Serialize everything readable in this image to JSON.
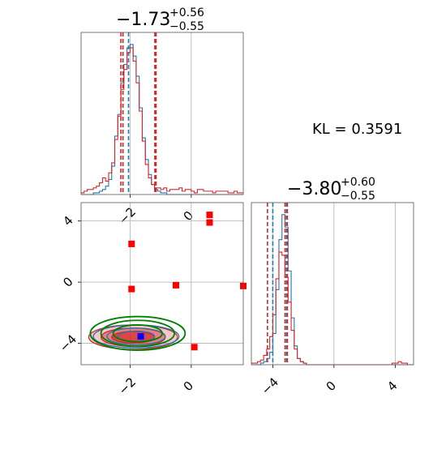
{
  "chart_data": [
    {
      "id": "marg1",
      "type": "histogram",
      "title": {
        "main": "−1.73",
        "sup": "+0.56",
        "sub": "−0.55"
      },
      "xlim": [
        -3.6,
        1.7
      ],
      "x_ticks": [
        -2,
        0
      ],
      "grid": true,
      "series": [
        {
          "color": "#1f77b4",
          "quantile_lines": [
            -2.05,
            -1.18
          ],
          "bins": {
            "start": -3.6,
            "width": 0.1,
            "counts": [
              0,
              0,
              0,
              0,
              1,
              1,
              2,
              3,
              5,
              9,
              17,
              35,
              48,
              67,
              78,
              88,
              90,
              83,
              71,
              52,
              34,
              21,
              12,
              6,
              3,
              2,
              1,
              1,
              0,
              0,
              0,
              0,
              0,
              0,
              0,
              0,
              0,
              0,
              0,
              0,
              0,
              0,
              0,
              0,
              0,
              0,
              0,
              0,
              0,
              0,
              0,
              0,
              0
            ]
          }
        },
        {
          "color": "#d62728",
          "quantile_lines": [
            -2.3,
            -2.23,
            -1.19,
            -1.15
          ],
          "bins": {
            "start": -3.6,
            "width": 0.1,
            "counts": [
              1,
              2,
              3,
              3,
              4,
              5,
              7,
              10,
              8,
              13,
              19,
              33,
              47,
              63,
              75,
              85,
              88,
              80,
              67,
              50,
              32,
              18,
              10,
              6,
              4,
              4,
              3,
              4,
              2,
              3,
              3,
              3,
              4,
              2,
              3,
              3,
              2,
              1,
              3,
              3,
              2,
              2,
              2,
              1,
              2,
              2,
              2,
              2,
              1,
              1,
              2,
              1,
              1
            ]
          }
        }
      ]
    },
    {
      "id": "joint",
      "type": "scatter_contour",
      "xlim": [
        -3.6,
        1.7
      ],
      "ylim": [
        -5.4,
        5.2
      ],
      "x_ticks": [
        -2,
        0
      ],
      "y_ticks": [
        -4,
        0,
        4
      ],
      "grid": true,
      "points": [
        {
          "x": -1.95,
          "y": 2.5,
          "color": "#ff0000"
        },
        {
          "x": -1.95,
          "y": -0.45,
          "color": "#ff0000"
        },
        {
          "x": -0.5,
          "y": -0.2,
          "color": "#ff0000"
        },
        {
          "x": 1.7,
          "y": -0.25,
          "color": "#ff0000"
        },
        {
          "x": 0.6,
          "y": 4.4,
          "color": "#ff0000"
        },
        {
          "x": 0.6,
          "y": 3.9,
          "color": "#ff0000"
        },
        {
          "x": 0.1,
          "y": -4.25,
          "color": "#ff0000"
        },
        {
          "x": -1.65,
          "y": -3.55,
          "color": "#0000ff"
        }
      ],
      "contours": [
        {
          "color": "#d62728",
          "filled": true,
          "cx": -1.9,
          "cy": -3.6,
          "levels": [
            [
              1.45,
              0.8
            ],
            [
              1.05,
              0.6
            ],
            [
              0.7,
              0.38
            ]
          ]
        },
        {
          "color": "#1f77b4",
          "filled": false,
          "cx": -1.8,
          "cy": -3.55,
          "levels": [
            [
              1.4,
              0.75
            ],
            [
              0.95,
              0.55
            ],
            [
              0.6,
              0.35
            ]
          ]
        },
        {
          "color": "#008000",
          "filled": false,
          "cx": -1.75,
          "cy": -3.35,
          "levels": [
            [
              1.55,
              1.1
            ],
            [
              1.2,
              0.85
            ],
            [
              0.8,
              0.55
            ]
          ]
        }
      ]
    },
    {
      "id": "marg2",
      "type": "histogram",
      "title": {
        "main": "−3.80",
        "sup": "+0.60",
        "sub": "−0.55"
      },
      "xlim": [
        -5.4,
        5.2
      ],
      "x_ticks": [
        -4,
        0,
        4
      ],
      "grid": true,
      "series": [
        {
          "color": "#1f77b4",
          "quantile_lines": [
            -4.0,
            -3.1
          ],
          "bins": {
            "start": -5.4,
            "width": 0.2,
            "counts": [
              0,
              0,
              0,
              1,
              2,
              4,
              8,
              20,
              48,
              80,
              96,
              88,
              60,
              30,
              12,
              4,
              2,
              1,
              0,
              0,
              0,
              0,
              0,
              0,
              0,
              0,
              0,
              0,
              0,
              0,
              0,
              0,
              0,
              0,
              0,
              0,
              0,
              0,
              0,
              0,
              0,
              0,
              0,
              0,
              0,
              0,
              0,
              0,
              0,
              0,
              0,
              0,
              0
            ]
          }
        },
        {
          "color": "#d62728",
          "quantile_lines": [
            -4.35,
            -3.2,
            -3.05
          ],
          "bins": {
            "start": -5.4,
            "width": 0.2,
            "counts": [
              1,
              1,
              2,
              3,
              6,
              10,
              18,
              32,
              55,
              72,
              70,
              56,
              40,
              22,
              10,
              4,
              2,
              1,
              0,
              0,
              0,
              0,
              0,
              0,
              0,
              0,
              0,
              0,
              0,
              0,
              0,
              0,
              0,
              0,
              0,
              0,
              0,
              0,
              0,
              0,
              0,
              0,
              0,
              0,
              0,
              0,
              1,
              1,
              2,
              1,
              1,
              0,
              0
            ]
          }
        }
      ]
    }
  ],
  "annotation": {
    "kl_text": "KL = 0.3591"
  }
}
